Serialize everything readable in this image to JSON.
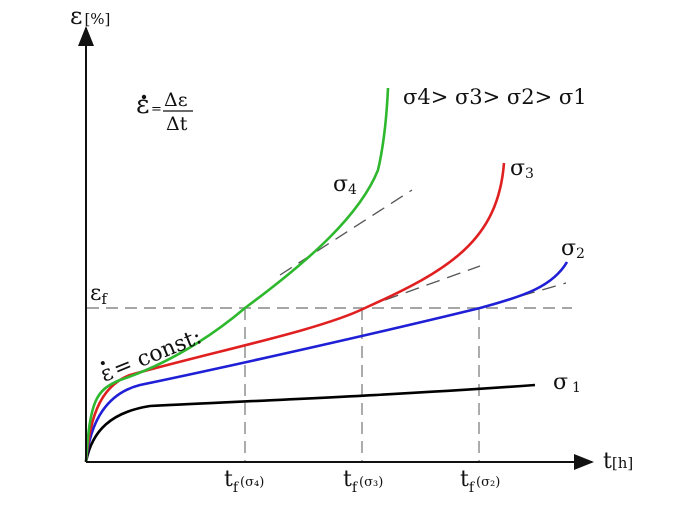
{
  "axes": {
    "y_symbol": "ε",
    "y_unit": "[%]",
    "x_symbol": "t",
    "x_unit": "[h]"
  },
  "formula": {
    "lhs": "ε",
    "equals": "=",
    "numerator": "Δε",
    "denominator": "Δt"
  },
  "stress_order": "σ4> σ3> σ2> σ1",
  "curves": [
    {
      "id": "s1",
      "label": "σ",
      "subscript": "1",
      "color": "#000000"
    },
    {
      "id": "s2",
      "label": "σ",
      "subscript": "2",
      "color": "#1f1fd6"
    },
    {
      "id": "s3",
      "label": "σ",
      "subscript": "3",
      "color": "#e02020"
    },
    {
      "id": "s4",
      "label": "σ",
      "subscript": "4",
      "color": "#2eb82e"
    }
  ],
  "strain_limit": {
    "label": "ε",
    "subscript": "f"
  },
  "const_label": {
    "dot": "ε",
    "text": "= const:"
  },
  "failure_times": [
    {
      "main": "t",
      "sub": "f",
      "arg": "(σ₄)"
    },
    {
      "main": "t",
      "sub": "f",
      "arg": "(σ₃)"
    },
    {
      "main": "t",
      "sub": "f",
      "arg": "(σ₂)"
    }
  ],
  "colors": {
    "axis": "#111111",
    "guide": "#888888",
    "tangent": "#555555"
  }
}
